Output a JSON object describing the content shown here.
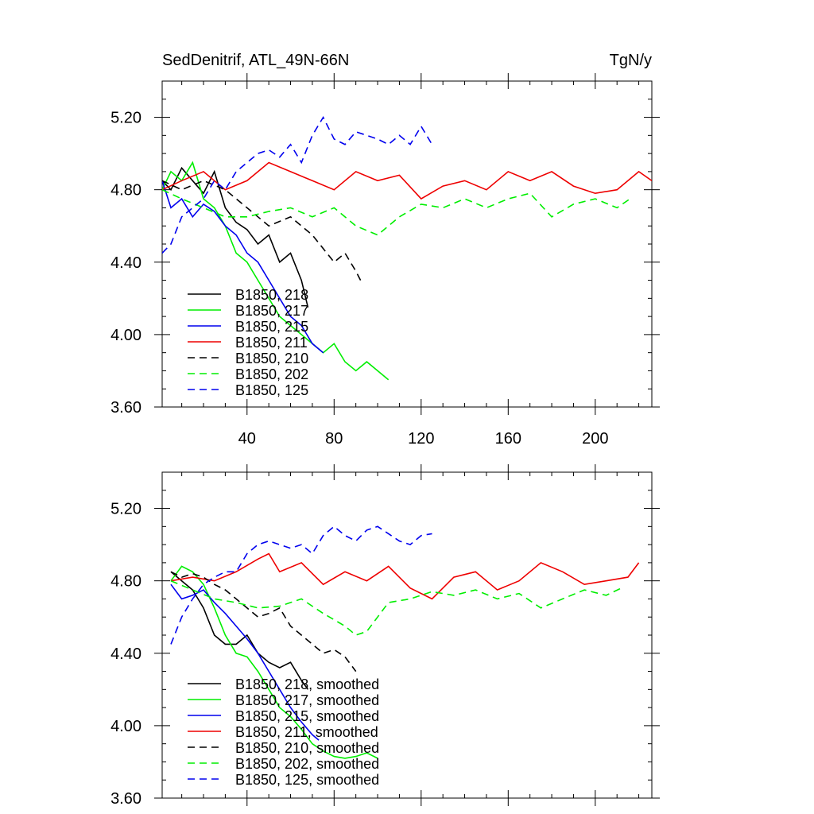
{
  "chart_data": [
    {
      "type": "line",
      "title_left": "SedDenitrif, ATL_49N-66N",
      "title_right": "TgN/y",
      "xlim": [
        1,
        226
      ],
      "ylim": [
        3.6,
        5.4
      ],
      "xticks": [
        40,
        80,
        120,
        160,
        200
      ],
      "xtick_labels": [
        "40",
        "80",
        "120",
        "160",
        "200"
      ],
      "yticks": [
        3.6,
        4.0,
        4.4,
        4.8,
        5.2
      ],
      "ytick_labels": [
        "3.60",
        "4.00",
        "4.40",
        "4.80",
        "5.20"
      ],
      "legend_position": "bottom-left",
      "series": [
        {
          "name": "B1850, 218",
          "color": "#000000",
          "dash": "solid",
          "x": [
            1,
            5,
            10,
            15,
            20,
            25,
            30,
            35,
            40,
            45,
            50,
            55,
            60,
            65,
            68
          ],
          "y": [
            4.85,
            4.8,
            4.92,
            4.85,
            4.78,
            4.9,
            4.7,
            4.62,
            4.58,
            4.5,
            4.55,
            4.4,
            4.45,
            4.3,
            4.15
          ]
        },
        {
          "name": "B1850, 217",
          "color": "#00ee00",
          "dash": "solid",
          "x": [
            1,
            5,
            10,
            15,
            20,
            25,
            30,
            35,
            40,
            45,
            50,
            55,
            60,
            65,
            70,
            75,
            80,
            85,
            90,
            95,
            100,
            105
          ],
          "y": [
            4.8,
            4.9,
            4.85,
            4.95,
            4.75,
            4.7,
            4.6,
            4.45,
            4.4,
            4.3,
            4.2,
            4.1,
            4.05,
            4.0,
            3.95,
            3.9,
            3.95,
            3.85,
            3.8,
            3.85,
            3.8,
            3.75
          ]
        },
        {
          "name": "B1850, 215",
          "color": "#0000ee",
          "dash": "solid",
          "x": [
            1,
            5,
            10,
            15,
            20,
            25,
            30,
            35,
            40,
            45,
            50,
            55,
            60,
            65,
            70,
            75
          ],
          "y": [
            4.85,
            4.7,
            4.75,
            4.65,
            4.72,
            4.68,
            4.6,
            4.55,
            4.45,
            4.4,
            4.3,
            4.2,
            4.1,
            4.05,
            3.95,
            3.9
          ]
        },
        {
          "name": "B1850, 211",
          "color": "#ee0000",
          "dash": "solid",
          "x": [
            1,
            10,
            20,
            30,
            40,
            50,
            60,
            70,
            80,
            90,
            100,
            110,
            120,
            130,
            140,
            150,
            160,
            170,
            180,
            190,
            200,
            210,
            220,
            226
          ],
          "y": [
            4.8,
            4.85,
            4.9,
            4.8,
            4.85,
            4.95,
            4.9,
            4.85,
            4.8,
            4.9,
            4.85,
            4.88,
            4.75,
            4.82,
            4.85,
            4.8,
            4.9,
            4.85,
            4.9,
            4.82,
            4.78,
            4.8,
            4.9,
            4.85
          ]
        },
        {
          "name": "B1850, 210",
          "color": "#000000",
          "dash": "dashed",
          "x": [
            1,
            10,
            20,
            30,
            40,
            50,
            60,
            70,
            80,
            85,
            90,
            93
          ],
          "y": [
            4.85,
            4.8,
            4.85,
            4.8,
            4.7,
            4.6,
            4.65,
            4.55,
            4.4,
            4.45,
            4.35,
            4.28
          ]
        },
        {
          "name": "B1850, 202",
          "color": "#00ee00",
          "dash": "dashed",
          "x": [
            1,
            10,
            20,
            30,
            40,
            50,
            60,
            70,
            80,
            90,
            100,
            110,
            120,
            130,
            140,
            150,
            160,
            170,
            180,
            190,
            200,
            210,
            216
          ],
          "y": [
            4.8,
            4.75,
            4.7,
            4.65,
            4.65,
            4.68,
            4.7,
            4.65,
            4.7,
            4.6,
            4.55,
            4.65,
            4.72,
            4.7,
            4.75,
            4.7,
            4.75,
            4.78,
            4.65,
            4.72,
            4.75,
            4.7,
            4.75
          ]
        },
        {
          "name": "B1850, 125",
          "color": "#0000ee",
          "dash": "dashed",
          "x": [
            1,
            5,
            10,
            15,
            20,
            25,
            30,
            35,
            40,
            45,
            50,
            55,
            60,
            65,
            70,
            75,
            80,
            85,
            90,
            95,
            100,
            105,
            110,
            115,
            120,
            125
          ],
          "y": [
            4.45,
            4.5,
            4.65,
            4.7,
            4.75,
            4.85,
            4.8,
            4.9,
            4.95,
            5.0,
            5.02,
            4.98,
            5.05,
            4.95,
            5.1,
            5.2,
            5.08,
            5.05,
            5.12,
            5.1,
            5.08,
            5.05,
            5.1,
            5.05,
            5.15,
            5.05
          ]
        }
      ]
    },
    {
      "type": "line",
      "xlim": [
        1,
        226
      ],
      "ylim": [
        3.6,
        5.4
      ],
      "yticks": [
        3.6,
        4.0,
        4.4,
        4.8,
        5.2
      ],
      "ytick_labels": [
        "3.60",
        "4.00",
        "4.40",
        "4.80",
        "5.20"
      ],
      "legend_position": "bottom-left",
      "series": [
        {
          "name": "B1850, 218, smoothed",
          "color": "#000000",
          "dash": "solid",
          "x": [
            5,
            10,
            15,
            20,
            25,
            30,
            35,
            40,
            45,
            50,
            55,
            60,
            65,
            68
          ],
          "y": [
            4.85,
            4.8,
            4.75,
            4.65,
            4.5,
            4.45,
            4.45,
            4.5,
            4.4,
            4.35,
            4.32,
            4.35,
            4.25,
            4.2
          ]
        },
        {
          "name": "B1850, 217, smoothed",
          "color": "#00ee00",
          "dash": "solid",
          "x": [
            5,
            10,
            15,
            20,
            25,
            30,
            35,
            40,
            45,
            50,
            55,
            60,
            65,
            70,
            75,
            80,
            85,
            90,
            95,
            100
          ],
          "y": [
            4.8,
            4.88,
            4.85,
            4.78,
            4.65,
            4.5,
            4.4,
            4.38,
            4.3,
            4.2,
            4.1,
            4.05,
            3.98,
            3.9,
            3.86,
            3.83,
            3.82,
            3.83,
            3.85,
            3.82
          ]
        },
        {
          "name": "B1850, 215, smoothed",
          "color": "#0000ee",
          "dash": "solid",
          "x": [
            5,
            10,
            15,
            20,
            25,
            30,
            35,
            40,
            45,
            50,
            55,
            60,
            65,
            70,
            73
          ],
          "y": [
            4.78,
            4.7,
            4.72,
            4.75,
            4.68,
            4.62,
            4.55,
            4.48,
            4.4,
            4.3,
            4.2,
            4.1,
            4.02,
            3.95,
            3.92
          ]
        },
        {
          "name": "B1850, 211, smoothed",
          "color": "#ee0000",
          "dash": "solid",
          "x": [
            5,
            15,
            25,
            35,
            45,
            50,
            55,
            65,
            75,
            85,
            95,
            105,
            115,
            125,
            135,
            145,
            155,
            165,
            175,
            185,
            195,
            205,
            215,
            220
          ],
          "y": [
            4.8,
            4.82,
            4.8,
            4.85,
            4.92,
            4.95,
            4.85,
            4.9,
            4.78,
            4.85,
            4.8,
            4.88,
            4.76,
            4.7,
            4.82,
            4.85,
            4.75,
            4.8,
            4.9,
            4.85,
            4.78,
            4.8,
            4.82,
            4.9
          ]
        },
        {
          "name": "B1850, 210, smoothed",
          "color": "#000000",
          "dash": "dashed",
          "x": [
            5,
            10,
            15,
            20,
            25,
            30,
            35,
            40,
            45,
            50,
            55,
            60,
            65,
            70,
            75,
            80,
            85,
            90
          ],
          "y": [
            4.85,
            4.82,
            4.84,
            4.82,
            4.78,
            4.75,
            4.7,
            4.65,
            4.6,
            4.62,
            4.65,
            4.55,
            4.5,
            4.45,
            4.4,
            4.42,
            4.38,
            4.3
          ]
        },
        {
          "name": "B1850, 202, smoothed",
          "color": "#00ee00",
          "dash": "dashed",
          "x": [
            5,
            15,
            25,
            35,
            45,
            55,
            65,
            75,
            85,
            90,
            95,
            105,
            115,
            125,
            135,
            145,
            155,
            165,
            175,
            185,
            195,
            205,
            212
          ],
          "y": [
            4.8,
            4.75,
            4.7,
            4.68,
            4.65,
            4.66,
            4.7,
            4.62,
            4.55,
            4.5,
            4.52,
            4.68,
            4.7,
            4.74,
            4.72,
            4.75,
            4.7,
            4.73,
            4.65,
            4.7,
            4.75,
            4.72,
            4.76
          ]
        },
        {
          "name": "B1850, 125, smoothed",
          "color": "#0000ee",
          "dash": "dashed",
          "x": [
            5,
            10,
            15,
            20,
            25,
            30,
            35,
            40,
            45,
            50,
            55,
            60,
            65,
            70,
            75,
            80,
            85,
            90,
            95,
            100,
            105,
            110,
            115,
            120,
            125
          ],
          "y": [
            4.45,
            4.6,
            4.7,
            4.78,
            4.82,
            4.85,
            4.85,
            4.95,
            5.0,
            5.02,
            5.0,
            4.98,
            5.0,
            4.95,
            5.05,
            5.1,
            5.05,
            5.02,
            5.08,
            5.1,
            5.06,
            5.02,
            5.0,
            5.05,
            5.06
          ]
        }
      ]
    }
  ]
}
